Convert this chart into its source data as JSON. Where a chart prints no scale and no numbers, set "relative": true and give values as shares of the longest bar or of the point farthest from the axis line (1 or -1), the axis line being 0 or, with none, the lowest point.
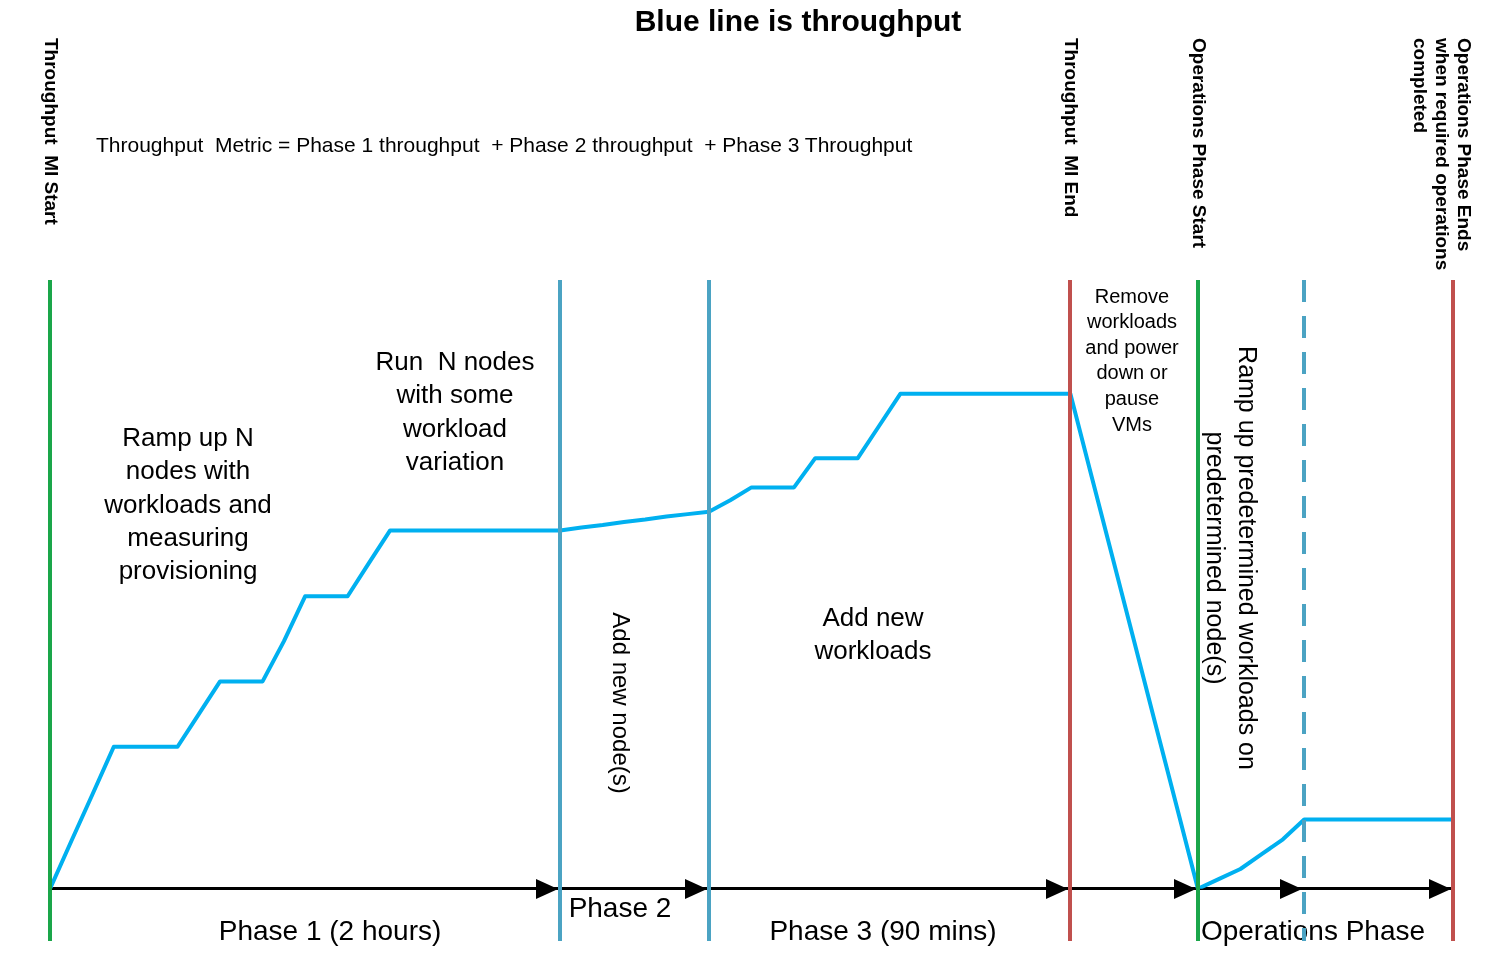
{
  "chart_data": {
    "type": "line",
    "title": "Blue line is throughput",
    "relative": true,
    "grid": false,
    "legend": false,
    "marker": "none",
    "line_style": "solid",
    "categories": [
      null,
      null,
      null,
      null,
      null,
      null,
      null,
      null,
      null,
      null,
      null,
      null,
      null,
      null,
      null,
      null,
      null,
      null,
      null,
      null,
      null,
      null,
      null,
      null,
      null,
      null,
      null,
      null,
      null,
      null,
      null,
      null,
      null,
      null,
      null,
      null,
      null,
      null,
      null,
      null,
      null,
      null,
      null,
      null,
      null,
      null,
      null,
      null,
      null,
      null,
      null,
      null,
      null,
      null,
      null,
      null,
      null,
      null,
      null,
      null,
      null,
      null,
      null,
      null,
      null,
      null,
      null
    ],
    "series": [
      {
        "color": "#00b0f0",
        "values": [
          0,
          0.096,
          0.191,
          0.287,
          0.287,
          0.287,
          0.287,
          0.353,
          0.419,
          0.419,
          0.419,
          0.5,
          0.591,
          0.591,
          0.591,
          0.658,
          0.724,
          0.724,
          0.724,
          0.724,
          0.724,
          0.724,
          0.724,
          0.724,
          0.724,
          0.73,
          0.735,
          0.741,
          0.746,
          0.752,
          0.757,
          0.762,
          0.785,
          0.811,
          0.811,
          0.811,
          0.87,
          0.87,
          0.87,
          0.935,
          1,
          1,
          1,
          1,
          1,
          1,
          1,
          1,
          1,
          0.833,
          0.667,
          0.5,
          0.333,
          0.167,
          0,
          0.02,
          0.04,
          0.07,
          0.1,
          0.14,
          0.14,
          0.14,
          0.14,
          0.14,
          0.14,
          0.14,
          0.14
        ]
      }
    ],
    "annotations": [
      "Throughput  Metric = Phase 1 throughput  + Phase 2 throughput  + Phase 3 Throughput",
      "Ramp up N nodes with workloads and measuring provisioning",
      "Run  N nodes with some workload variation",
      "Add new node(s)",
      "Add new workloads",
      "Remove workloads and power down or pause VMs",
      "Ramp up predetermined workloads on predetermined node(s)",
      "Phase 1 (2 hours)",
      "Phase 2",
      "Phase 3 (90 mins)",
      "Operations Phase",
      "Throughput  MI Start",
      "Throughput  MI End",
      "Operations Phase Start",
      "Operations Phase Ends when required operations completed"
    ]
  }
}
